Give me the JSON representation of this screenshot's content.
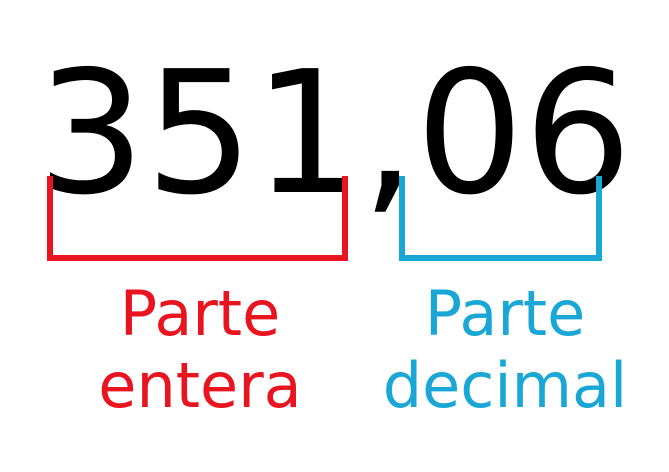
{
  "number": {
    "integer_part": "351",
    "separator": ",",
    "decimal_part": "06"
  },
  "labels": {
    "integer": {
      "line1": "Parte",
      "line2": "entera"
    },
    "decimal": {
      "line1": "Parte",
      "line2": "decimal"
    }
  },
  "colors": {
    "integer": "#e8141f",
    "decimal": "#1aa7d6",
    "number": "#000000"
  }
}
